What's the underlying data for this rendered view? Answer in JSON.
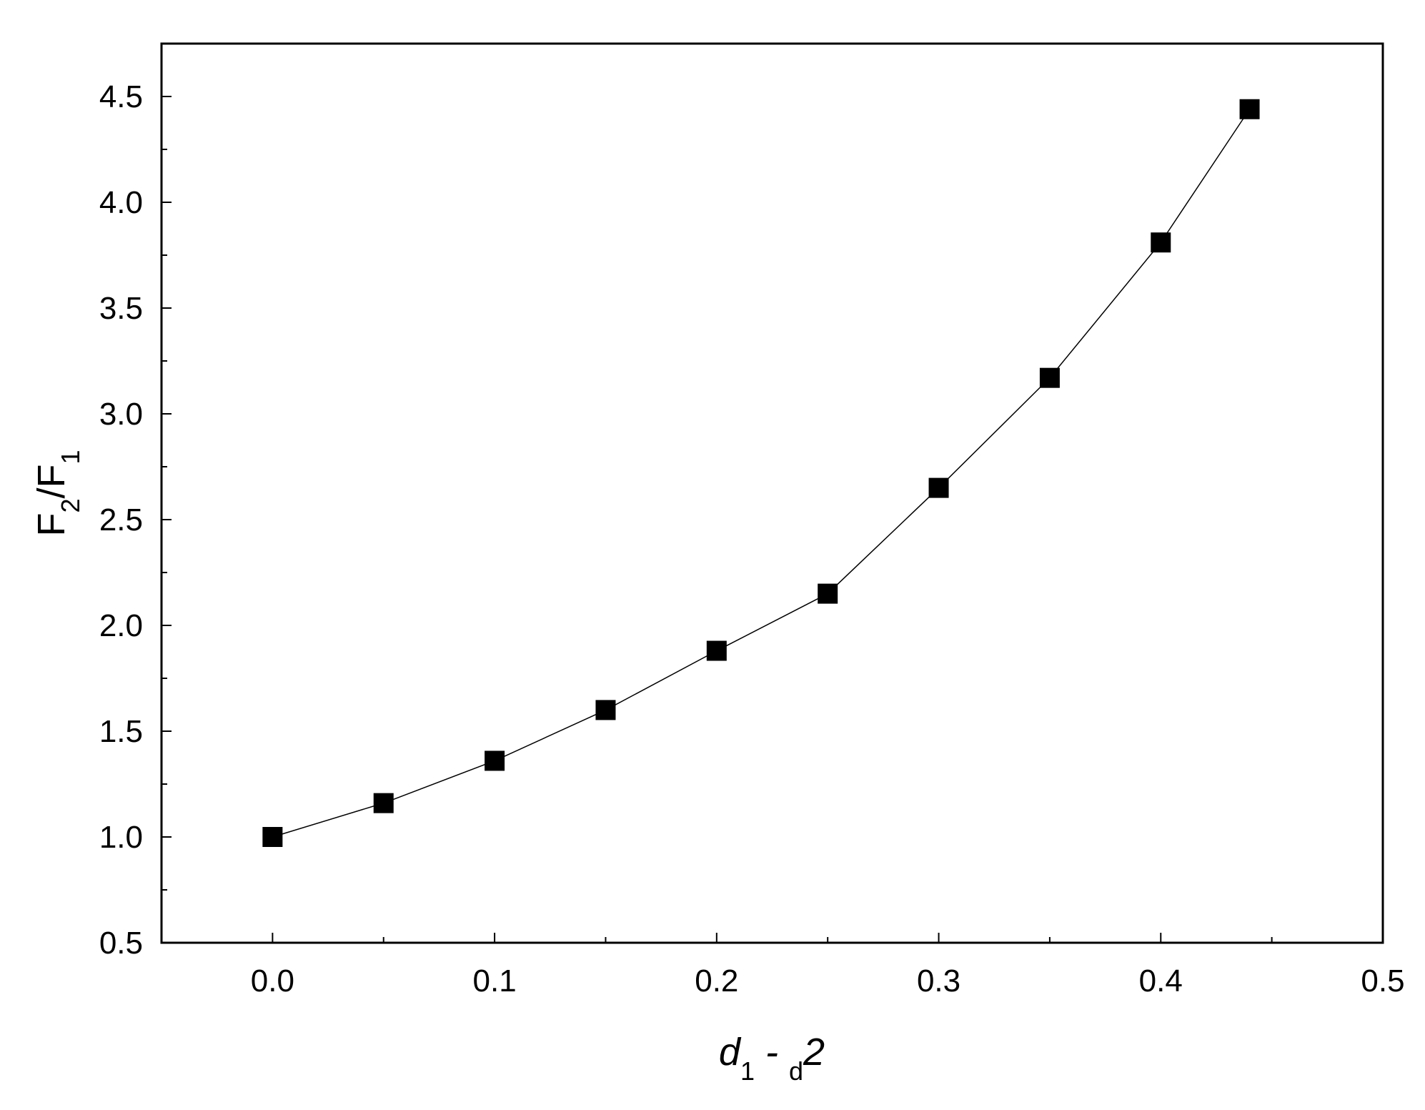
{
  "chart_data": {
    "type": "line",
    "xlabel": [
      "d",
      "1",
      " - ",
      "d",
      "2"
    ],
    "ylabel": [
      "F",
      "2",
      "/F",
      "1"
    ],
    "x": [
      0,
      0.05,
      0.1,
      0.15,
      0.2,
      0.25,
      0.3,
      0.35,
      0.4,
      0.44
    ],
    "series": [
      {
        "color": "#000000",
        "values": [
          1.0,
          1.16,
          1.36,
          1.6,
          1.88,
          2.15,
          2.65,
          3.17,
          3.81,
          4.44
        ]
      }
    ],
    "xlim": [
      -0.05,
      0.5
    ],
    "ylim": [
      0.5,
      4.75
    ],
    "xticks": [
      {
        "value": 0,
        "label": "0.0"
      },
      0.1,
      0.2,
      0.3,
      0.4,
      0.5
    ],
    "yticks": [
      0.5,
      {
        "value": 1,
        "label": "1.0"
      },
      1.5,
      {
        "value": 2,
        "label": "2.0"
      },
      2.5,
      {
        "value": 3,
        "label": "3.0"
      },
      3.5,
      {
        "value": 4,
        "label": "4.0"
      },
      4.5
    ],
    "x_minor_ticks": [
      0.05,
      0.15,
      0.25,
      0.35,
      0.45
    ],
    "y_minor_ticks": [
      0.75,
      1.25,
      1.75,
      2.25,
      2.75,
      3.25,
      3.75,
      4.25
    ],
    "marker": "square"
  }
}
